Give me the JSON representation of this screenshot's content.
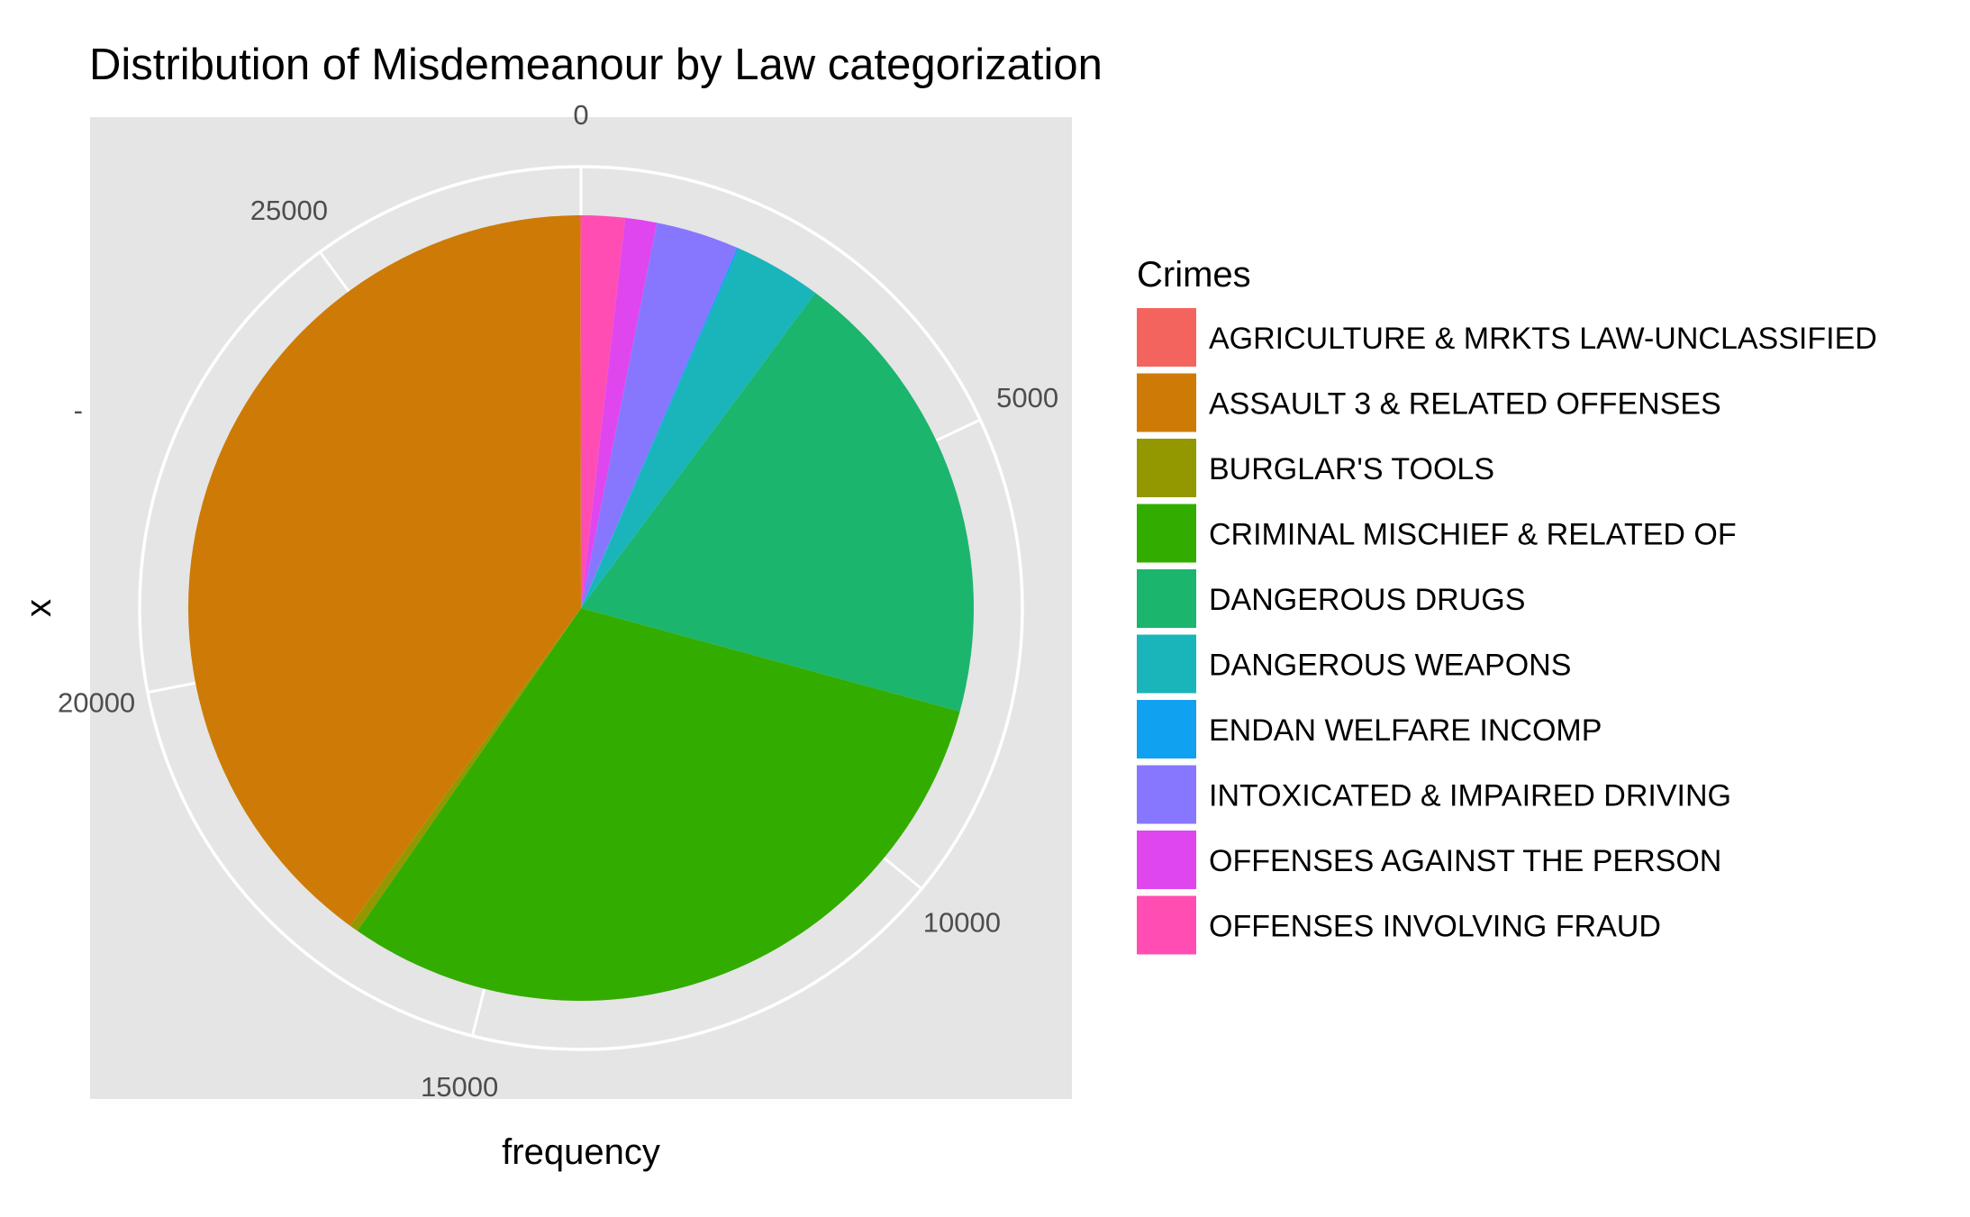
{
  "chart_data": {
    "type": "pie",
    "title": "Distribution of Misdemeanour by Law categorization",
    "xlabel": "frequency",
    "ylabel": "x",
    "y_tick_label": "-",
    "legend_title": "Crimes",
    "legend_position": "right",
    "grid": true,
    "radial_ticks": [
      "0",
      "5000",
      "10000",
      "15000",
      "20000",
      "25000"
    ],
    "radial_tick_values": [
      0,
      5000,
      10000,
      15000,
      20000,
      25000
    ],
    "total": 27800,
    "slices": [
      {
        "label": "OFFENSES INVOLVING FRAUD",
        "value": 500,
        "color": "#FF4DB4"
      },
      {
        "label": "OFFENSES AGAINST THE PERSON",
        "value": 360,
        "color": "#E046EE"
      },
      {
        "label": "INTOXICATED & IMPAIRED DRIVING",
        "value": 950,
        "color": "#8777FF"
      },
      {
        "label": "ENDAN WELFARE INCOMP",
        "value": 20,
        "color": "#11A1F1"
      },
      {
        "label": "DANGEROUS WEAPONS",
        "value": 1000,
        "color": "#19B5BA"
      },
      {
        "label": "DANGEROUS DRUGS",
        "value": 5300,
        "color": "#1BB56E"
      },
      {
        "label": "CRIMINAL MISCHIEF & RELATED OF",
        "value": 8450,
        "color": "#33AC00"
      },
      {
        "label": "BURGLAR'S TOOLS",
        "value": 100,
        "color": "#939800"
      },
      {
        "label": "ASSAULT 3 & RELATED OFFENSES",
        "value": 11110,
        "color": "#CD7B06"
      },
      {
        "label": "AGRICULTURE & MRKTS LAW-UNCLASSIFIED",
        "value": 10,
        "color": "#F4645F"
      }
    ],
    "legend": [
      {
        "label": "AGRICULTURE & MRKTS LAW-UNCLASSIFIED",
        "color": "#F4645F"
      },
      {
        "label": "ASSAULT 3 & RELATED OFFENSES",
        "color": "#CD7B06"
      },
      {
        "label": "BURGLAR'S TOOLS",
        "color": "#939800"
      },
      {
        "label": "CRIMINAL MISCHIEF & RELATED OF",
        "color": "#33AC00"
      },
      {
        "label": "DANGEROUS DRUGS",
        "color": "#1BB56E"
      },
      {
        "label": "DANGEROUS WEAPONS",
        "color": "#19B5BA"
      },
      {
        "label": "ENDAN WELFARE INCOMP",
        "color": "#11A1F1"
      },
      {
        "label": "INTOXICATED & IMPAIRED DRIVING",
        "color": "#8777FF"
      },
      {
        "label": "OFFENSES AGAINST THE PERSON",
        "color": "#E046EE"
      },
      {
        "label": "OFFENSES INVOLVING FRAUD",
        "color": "#FF4DB4"
      }
    ]
  }
}
